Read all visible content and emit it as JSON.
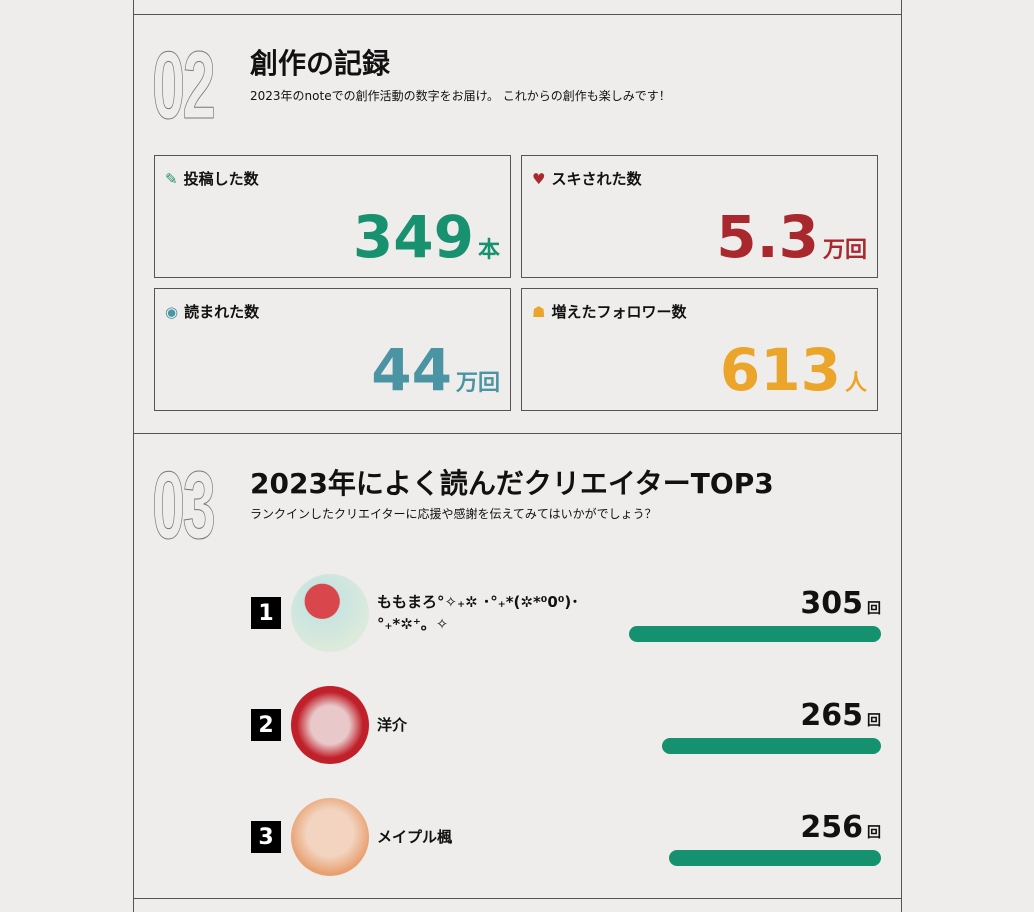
{
  "section2": {
    "number": "02",
    "title": "創作の記録",
    "subtitle": "2023年のnoteでの創作活動の数字をお届け。 これからの創作も楽しみです！",
    "stats": [
      {
        "label": "投稿した数",
        "value": "349",
        "unit": "本",
        "color": "#17916f",
        "icon": "pencil-icon"
      },
      {
        "label": "スキされた数",
        "value": "5.3",
        "unit": "万回",
        "color": "#a8282e",
        "icon": "heart-icon"
      },
      {
        "label": "読まれた数",
        "value": "44",
        "unit": "万回",
        "color": "#4a94a3",
        "icon": "eye-icon"
      },
      {
        "label": "増えたフォロワー数",
        "value": "613",
        "unit": "人",
        "color": "#eaa52a",
        "icon": "people-icon"
      }
    ]
  },
  "section3": {
    "number": "03",
    "title": "2023年によく読んだクリエイターTOP3",
    "subtitle": "ランクインしたクリエイターに応援や感謝を伝えてみてはいかがでしょう？",
    "creators": [
      {
        "rank": "1",
        "name": "ももまろ°✧₊✲ ･°₊*(✲*⁰0⁰)･ °₊*✲⁺。✧",
        "count": "305",
        "unit": "回",
        "bar_fraction": 1.0
      },
      {
        "rank": "2",
        "name": "洋介",
        "count": "265",
        "unit": "回",
        "bar_fraction": 0.87
      },
      {
        "rank": "3",
        "name": "メイプル楓",
        "count": "256",
        "unit": "回",
        "bar_fraction": 0.84
      }
    ]
  }
}
